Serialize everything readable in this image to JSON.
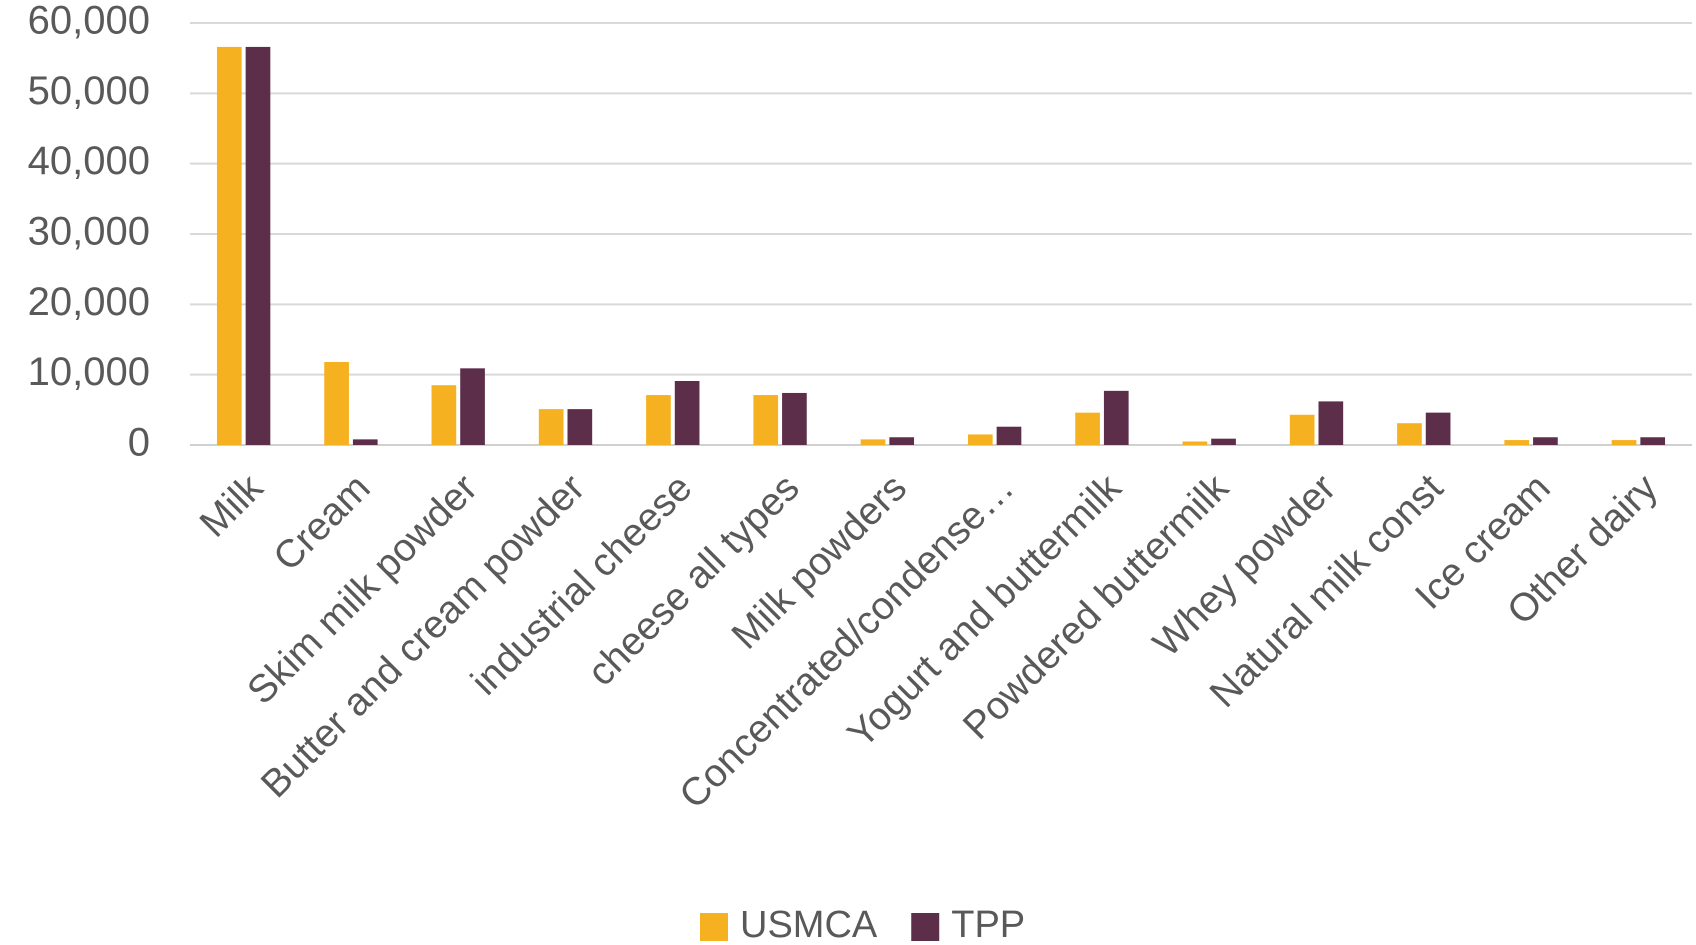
{
  "chart_data": {
    "type": "bar",
    "categories": [
      "Milk",
      "Cream",
      "Skim milk powder",
      "Butter and cream powder",
      "industrial cheese",
      "cheese all types",
      "Milk powders",
      "Concentrated/condense…",
      "Yogurt and buttermilk",
      "Powdered buttermilk",
      "Whey powder",
      "Natural milk const",
      "Ice cream",
      "Other dairy"
    ],
    "series": [
      {
        "name": "USMCA",
        "color": "#f6b120",
        "values": [
          56600,
          11800,
          8500,
          5100,
          7100,
          7100,
          800,
          1500,
          4600,
          500,
          4300,
          3100,
          700,
          700
        ]
      },
      {
        "name": "TPP",
        "color": "#5c2e4a",
        "values": [
          56600,
          800,
          10900,
          5100,
          9100,
          7400,
          1100,
          2600,
          7700,
          900,
          6200,
          4600,
          1100,
          1100
        ]
      }
    ],
    "ylim": [
      0,
      60000
    ],
    "yticks": [
      0,
      {
        "value": 10000,
        "label": "10,000"
      },
      {
        "value": 20000,
        "label": "20,000"
      },
      {
        "value": 30000,
        "label": "30,000"
      },
      {
        "value": 40000,
        "label": "40,000"
      },
      {
        "value": 50000,
        "label": "50,000"
      },
      {
        "value": 60000,
        "label": "60,000"
      }
    ],
    "grid": true,
    "legend": "bottom"
  }
}
